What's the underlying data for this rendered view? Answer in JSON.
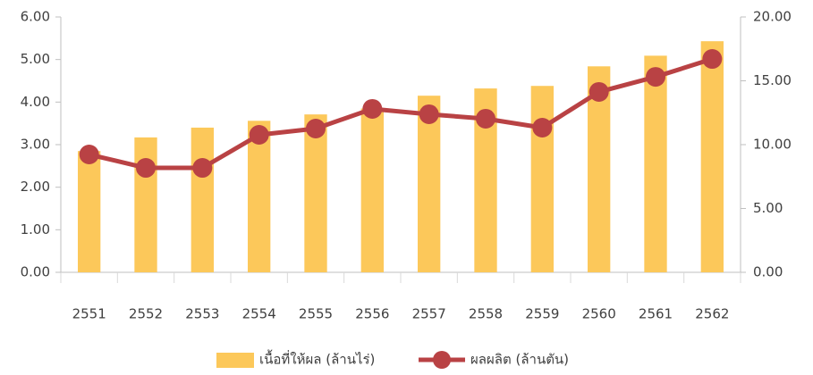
{
  "chart_data": {
    "type": "bar",
    "categories": [
      "2551",
      "2552",
      "2553",
      "2554",
      "2555",
      "2556",
      "2557",
      "2558",
      "2559",
      "2560",
      "2561",
      "2562"
    ],
    "series": [
      {
        "name": "เนื้อที่ให้ผล (ล้านไร่)",
        "type": "bar",
        "color": "#fcc85a",
        "axis": "y",
        "values": [
          2.85,
          3.17,
          3.4,
          3.56,
          3.71,
          3.85,
          4.15,
          4.32,
          4.38,
          4.84,
          5.09,
          5.43
        ]
      },
      {
        "name": "ผลผลิต (ล้านตัน)",
        "type": "line",
        "color": "#b94244",
        "axis": "y2",
        "values": [
          9.23,
          8.18,
          8.18,
          10.77,
          11.26,
          12.8,
          12.38,
          12.03,
          11.33,
          14.13,
          15.31,
          16.71
        ]
      }
    ],
    "ylim": [
      0,
      6
    ],
    "yticks": [
      {
        "value": 0,
        "label": "0.00"
      },
      {
        "value": 1,
        "label": "1.00"
      },
      {
        "value": 2,
        "label": "2.00"
      },
      {
        "value": 3,
        "label": "3.00"
      },
      {
        "value": 4,
        "label": "4.00"
      },
      {
        "value": 5,
        "label": "5.00"
      },
      {
        "value": 6,
        "label": "6.00"
      }
    ],
    "y2lim": [
      0,
      20
    ],
    "y2ticks": [
      {
        "value": 0,
        "label": "0.00"
      },
      {
        "value": 5,
        "label": "5.00"
      },
      {
        "value": 10,
        "label": "10.00"
      },
      {
        "value": 15,
        "label": "15.00"
      },
      {
        "value": 20,
        "label": "20.00"
      }
    ],
    "legend": "bottom"
  }
}
